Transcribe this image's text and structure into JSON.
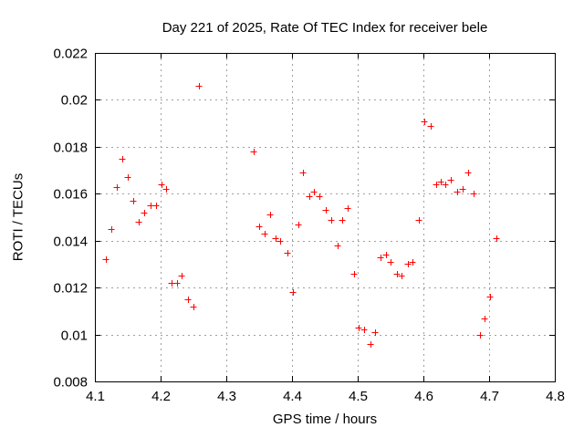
{
  "window": {
    "title": "Day 221 of 2025, Rate Of TEC Index for receiver bele"
  },
  "chart_data": {
    "type": "scatter",
    "title": "Day 221 of 2025, Rate Of TEC Index for receiver bele",
    "xlabel": "GPS time / hours",
    "ylabel": "ROTI / TECUs",
    "xlim": [
      4.1,
      4.8
    ],
    "ylim": [
      0.008,
      0.022
    ],
    "xtick_labels": [
      "4.1",
      "4.2",
      "4.3",
      "4.4",
      "4.5",
      "4.6",
      "4.7",
      "4.8"
    ],
    "ytick_labels": [
      "0.008",
      "0.01",
      "0.012",
      "0.014",
      "0.016",
      "0.018",
      "0.02",
      "0.022"
    ],
    "grid": true,
    "legend": "none",
    "marker": "plus",
    "marker_color": "#ff0000",
    "grid_color": "#a0a0a0",
    "frame_color": "#000000",
    "series": [
      {
        "name": "ROTI",
        "points": [
          [
            4.117,
            0.0132
          ],
          [
            4.125,
            0.0145
          ],
          [
            4.133,
            0.0163
          ],
          [
            4.142,
            0.0175
          ],
          [
            4.15,
            0.0167
          ],
          [
            4.159,
            0.0157
          ],
          [
            4.167,
            0.0148
          ],
          [
            4.175,
            0.0152
          ],
          [
            4.185,
            0.0155
          ],
          [
            4.193,
            0.0155
          ],
          [
            4.201,
            0.0164
          ],
          [
            4.209,
            0.0162
          ],
          [
            4.217,
            0.0122
          ],
          [
            4.225,
            0.0122
          ],
          [
            4.232,
            0.0125
          ],
          [
            4.242,
            0.0115
          ],
          [
            4.25,
            0.0112
          ],
          [
            4.259,
            0.0206
          ],
          [
            4.341,
            0.0178
          ],
          [
            4.35,
            0.0146
          ],
          [
            4.359,
            0.0143
          ],
          [
            4.367,
            0.0151
          ],
          [
            4.375,
            0.0141
          ],
          [
            4.382,
            0.014
          ],
          [
            4.393,
            0.0135
          ],
          [
            4.401,
            0.0118
          ],
          [
            4.41,
            0.0147
          ],
          [
            4.417,
            0.0169
          ],
          [
            4.427,
            0.0159
          ],
          [
            4.433,
            0.0161
          ],
          [
            4.442,
            0.0159
          ],
          [
            4.451,
            0.0153
          ],
          [
            4.46,
            0.0149
          ],
          [
            4.469,
            0.0138
          ],
          [
            4.477,
            0.0149
          ],
          [
            4.485,
            0.0154
          ],
          [
            4.494,
            0.0126
          ],
          [
            4.502,
            0.0103
          ],
          [
            4.51,
            0.0102
          ],
          [
            4.519,
            0.0096
          ],
          [
            4.527,
            0.0101
          ],
          [
            4.535,
            0.0133
          ],
          [
            4.543,
            0.0134
          ],
          [
            4.55,
            0.0131
          ],
          [
            4.56,
            0.0126
          ],
          [
            4.567,
            0.0125
          ],
          [
            4.576,
            0.013
          ],
          [
            4.583,
            0.0131
          ],
          [
            4.593,
            0.0149
          ],
          [
            4.602,
            0.0191
          ],
          [
            4.611,
            0.0189
          ],
          [
            4.619,
            0.0164
          ],
          [
            4.627,
            0.0165
          ],
          [
            4.634,
            0.0164
          ],
          [
            4.642,
            0.0166
          ],
          [
            4.652,
            0.0161
          ],
          [
            4.66,
            0.0162
          ],
          [
            4.668,
            0.0169
          ],
          [
            4.677,
            0.016
          ],
          [
            4.686,
            0.01
          ],
          [
            4.693,
            0.0107
          ],
          [
            4.701,
            0.0116
          ],
          [
            4.711,
            0.0141
          ]
        ]
      }
    ]
  }
}
